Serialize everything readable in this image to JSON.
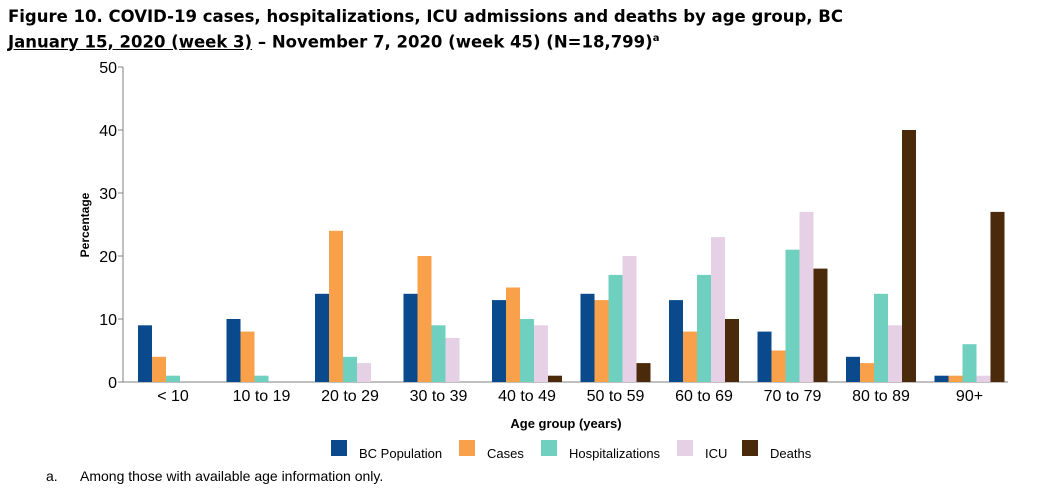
{
  "title": {
    "line1": "Figure 10. COVID-19 cases, hospitalizations, ICU admissions and deaths by age group, BC",
    "line2_underlined": "January 15, 2020 (week 3)",
    "line2_rest": " – November 7, 2020 (week 45) (N=18,799)",
    "superscript": "a"
  },
  "footnote": {
    "marker": "a.",
    "text": "Among those with available age information only."
  },
  "chart_data": {
    "type": "bar",
    "categories": [
      "< 10",
      "10 to 19",
      "20 to 29",
      "30 to 39",
      "40 to 49",
      "50 to 59",
      "60 to 69",
      "70 to 79",
      "80 to 89",
      "90+"
    ],
    "series": [
      {
        "name": "BC Population",
        "color": "#0a4a8c",
        "values": [
          9,
          10,
          14,
          14,
          13,
          14,
          13,
          8,
          4,
          1
        ]
      },
      {
        "name": "Cases",
        "color": "#f9a14a",
        "values": [
          4,
          8,
          24,
          20,
          15,
          13,
          8,
          5,
          3,
          1
        ]
      },
      {
        "name": "Hospitalizations",
        "color": "#6fd0c0",
        "values": [
          1,
          1,
          4,
          9,
          10,
          17,
          17,
          21,
          14,
          6
        ]
      },
      {
        "name": "ICU",
        "color": "#e6d0e6",
        "values": [
          0,
          0,
          3,
          7,
          9,
          20,
          23,
          27,
          9,
          1
        ]
      },
      {
        "name": "Deaths",
        "color": "#4a2a0a",
        "values": [
          0,
          0,
          0,
          0,
          1,
          3,
          10,
          18,
          40,
          27
        ]
      }
    ],
    "xlabel": "Age group (years)",
    "ylabel": "Percentage",
    "ylim": [
      0,
      50
    ],
    "yticks": [
      "0",
      "10",
      "20",
      "30",
      "40",
      "50"
    ],
    "legend_position": "bottom"
  }
}
